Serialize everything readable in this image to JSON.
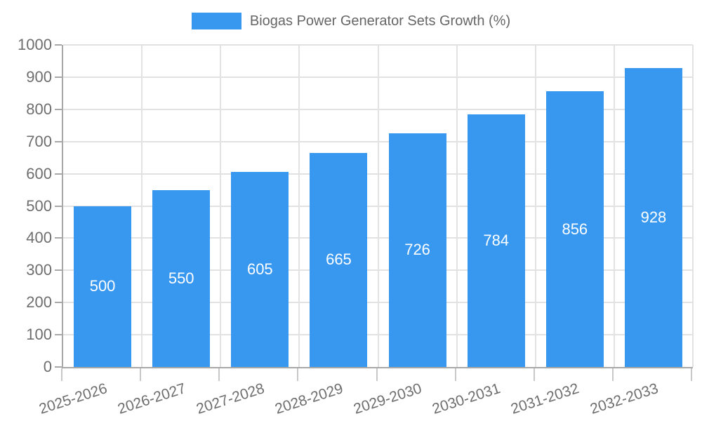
{
  "chart_data": {
    "type": "bar",
    "title": "Biogas Power Generator Sets Growth (%)",
    "categories": [
      "2025-2026",
      "2026-2027",
      "2027-2028",
      "2028-2029",
      "2029-2030",
      "2030-2031",
      "2031-2032",
      "2032-2033"
    ],
    "values": [
      500,
      550,
      605,
      665,
      726,
      784,
      856,
      928
    ],
    "yticks": [
      "0",
      "100",
      "200",
      "300",
      "400",
      "500",
      "600",
      "700",
      "800",
      "900",
      "1000"
    ],
    "ylim": [
      0,
      1000
    ],
    "ytick_step": 100,
    "xlabel": "",
    "ylabel": "",
    "grid": true,
    "legend_position": "top-center",
    "bar_value_labels": "inside-center",
    "x_label_rotation_deg": -18
  },
  "colors": {
    "bar": "#3898EF",
    "axis_text": "#6E6E6E",
    "legend_text": "#666666",
    "gridline": "#E2E2E2",
    "axis_line": "#A8A8A8",
    "tick": "#C8C8C8",
    "bar_label": "#FFFFFF",
    "background": "#FFFFFF"
  }
}
